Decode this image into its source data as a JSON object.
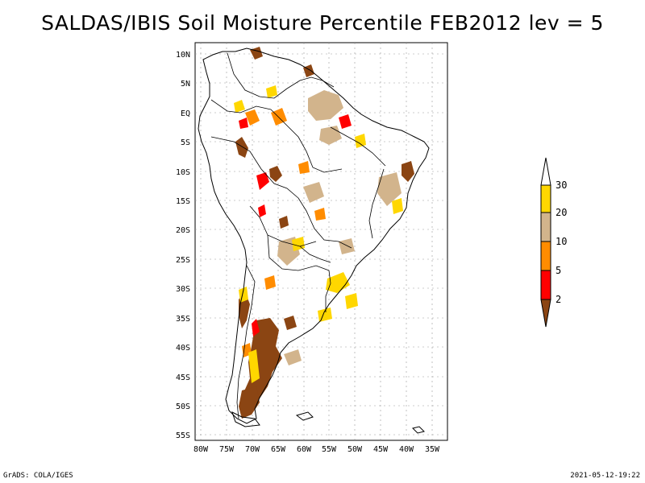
{
  "title": "SALDAS/IBIS Soil Moisture Percentile FEB2012 lev = 5",
  "map": {
    "lat_ticks": [
      "10N",
      "5N",
      "EQ",
      "5S",
      "10S",
      "15S",
      "20S",
      "25S",
      "30S",
      "35S",
      "40S",
      "45S",
      "50S",
      "55S"
    ],
    "lon_ticks": [
      "80W",
      "75W",
      "70W",
      "65W",
      "60W",
      "55W",
      "50W",
      "45W",
      "40W",
      "35W"
    ],
    "lon_range": [
      -81,
      -33
    ],
    "lat_range": [
      -56,
      12
    ],
    "grid": true
  },
  "legend": {
    "placement": "right",
    "labels": [
      "2",
      "5",
      "10",
      "20",
      "30"
    ],
    "colors": {
      "below_2": "#8b4513",
      "2_5": "#ff0000",
      "5_10": "#ff8c00",
      "10_20": "#d2b48c",
      "20_30": "#ffd700",
      "above_30": "#ffffff"
    }
  },
  "footer": {
    "left": "GrADS: COLA/IGES",
    "right": "2021-05-12-19:22"
  }
}
